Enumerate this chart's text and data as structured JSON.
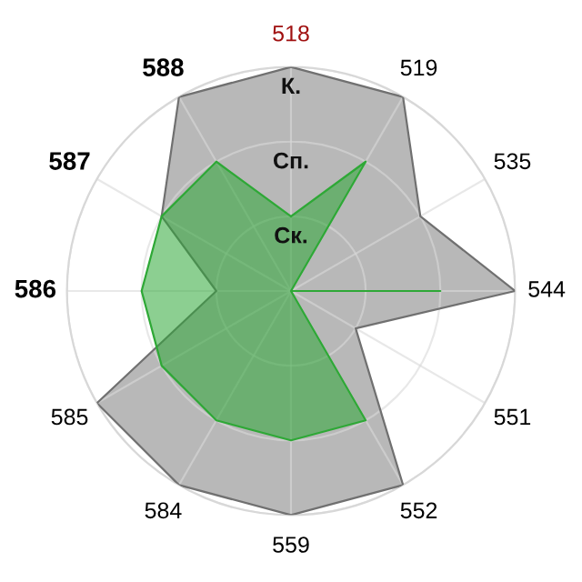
{
  "chart_data": {
    "type": "radar",
    "categories": [
      "518",
      "519",
      "535",
      "544",
      "551",
      "552",
      "559",
      "584",
      "585",
      "586",
      "587",
      "588"
    ],
    "series": [
      {
        "color": "#b8b8b8",
        "values": [
          3,
          3,
          2,
          3,
          1,
          3,
          3,
          3,
          3,
          1,
          2,
          3
        ]
      },
      {
        "color": "#2ea836",
        "values": [
          1,
          2,
          0,
          2,
          0,
          2,
          2,
          2,
          2,
          2,
          2,
          2
        ]
      }
    ],
    "ylim": [
      0,
      3
    ],
    "yticks": [
      {
        "value": 1,
        "label": "Ск."
      },
      {
        "value": 2,
        "label": "Сп."
      },
      {
        "value": 3,
        "label": "К."
      }
    ],
    "grid": true
  }
}
